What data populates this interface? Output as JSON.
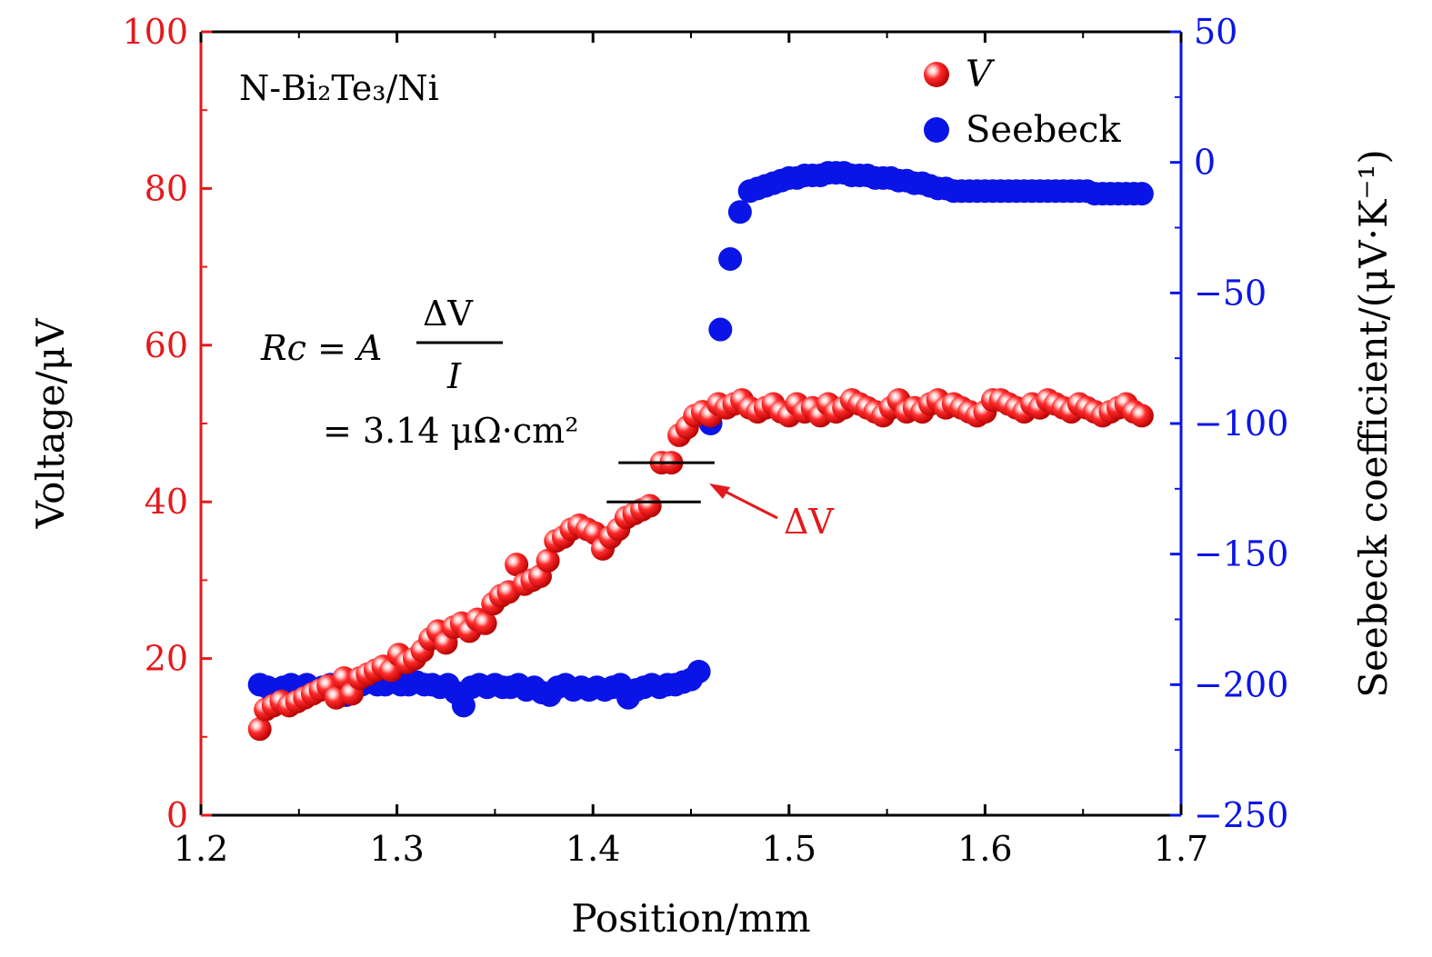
{
  "colors": {
    "voltage": "#e31a1c",
    "seebeck": "#0a14e6",
    "axis": "#000000"
  },
  "chart_data": {
    "type": "scatter",
    "xlabel": "Position/mm",
    "ylabel_left": "Voltage/μV",
    "ylabel_right": "Seebeck coefficient/(μV·K⁻¹)",
    "xlim": [
      1.2,
      1.7
    ],
    "ylim_left": [
      0,
      100
    ],
    "ylim_right": [
      -250,
      50
    ],
    "x_ticks": [
      "1.2",
      "1.3",
      "1.4",
      "1.5",
      "1.6",
      "1.7"
    ],
    "y_left_ticks": [
      "0",
      "20",
      "40",
      "60",
      "80",
      "100"
    ],
    "y_right_ticks": [
      "−250",
      "−200",
      "−150",
      "−100",
      "−50",
      "0",
      "50"
    ],
    "grid": false,
    "legend_position": "top-right",
    "annotation_sample": "N-Bi₂Te₃/Ni",
    "annotation_formula_lhs": "Rc = A",
    "annotation_formula_numerator": "ΔV",
    "annotation_formula_denominator": "I",
    "annotation_formula_value": "= 3.14 μΩ·cm²",
    "annotation_delta": "ΔV",
    "delta_levels": [
      40,
      45
    ],
    "series": [
      {
        "name": "V",
        "axis": "left",
        "points": [
          [
            1.23,
            11.0
          ],
          [
            1.233,
            13.5
          ],
          [
            1.237,
            14.0
          ],
          [
            1.241,
            14.5
          ],
          [
            1.245,
            14.0
          ],
          [
            1.249,
            14.5
          ],
          [
            1.253,
            15.0
          ],
          [
            1.257,
            15.5
          ],
          [
            1.261,
            16.0
          ],
          [
            1.265,
            16.5
          ],
          [
            1.269,
            15.0
          ],
          [
            1.273,
            17.5
          ],
          [
            1.277,
            15.5
          ],
          [
            1.281,
            17.5
          ],
          [
            1.285,
            18.0
          ],
          [
            1.289,
            18.5
          ],
          [
            1.293,
            19.0
          ],
          [
            1.297,
            18.5
          ],
          [
            1.301,
            20.5
          ],
          [
            1.305,
            19.5
          ],
          [
            1.309,
            20.0
          ],
          [
            1.313,
            21.0
          ],
          [
            1.317,
            22.5
          ],
          [
            1.321,
            23.5
          ],
          [
            1.325,
            22.0
          ],
          [
            1.329,
            24.0
          ],
          [
            1.333,
            24.5
          ],
          [
            1.337,
            23.5
          ],
          [
            1.341,
            25.0
          ],
          [
            1.345,
            24.5
          ],
          [
            1.349,
            27.0
          ],
          [
            1.353,
            28.0
          ],
          [
            1.357,
            28.5
          ],
          [
            1.361,
            32.0
          ],
          [
            1.365,
            29.5
          ],
          [
            1.369,
            30.0
          ],
          [
            1.373,
            30.5
          ],
          [
            1.377,
            32.5
          ],
          [
            1.381,
            35.0
          ],
          [
            1.385,
            35.5
          ],
          [
            1.389,
            36.5
          ],
          [
            1.393,
            37.0
          ],
          [
            1.397,
            36.5
          ],
          [
            1.401,
            36.0
          ],
          [
            1.405,
            34.0
          ],
          [
            1.409,
            35.5
          ],
          [
            1.413,
            36.5
          ],
          [
            1.417,
            38.0
          ],
          [
            1.421,
            38.5
          ],
          [
            1.425,
            39.0
          ],
          [
            1.429,
            39.5
          ],
          [
            1.435,
            45.0
          ],
          [
            1.44,
            45.0
          ],
          [
            1.444,
            48.5
          ],
          [
            1.448,
            49.5
          ],
          [
            1.452,
            51.0
          ],
          [
            1.456,
            51.5
          ],
          [
            1.46,
            51.0
          ],
          [
            1.464,
            52.5
          ],
          [
            1.468,
            52.0
          ],
          [
            1.472,
            52.5
          ],
          [
            1.476,
            53.0
          ],
          [
            1.48,
            52.0
          ],
          [
            1.484,
            51.5
          ],
          [
            1.488,
            52.0
          ],
          [
            1.492,
            52.5
          ],
          [
            1.496,
            51.5
          ],
          [
            1.5,
            51.0
          ],
          [
            1.504,
            52.5
          ],
          [
            1.508,
            51.5
          ],
          [
            1.512,
            52.0
          ],
          [
            1.516,
            51.0
          ],
          [
            1.52,
            52.5
          ],
          [
            1.524,
            51.5
          ],
          [
            1.528,
            52.0
          ],
          [
            1.532,
            53.0
          ],
          [
            1.536,
            52.5
          ],
          [
            1.54,
            52.0
          ],
          [
            1.544,
            51.5
          ],
          [
            1.548,
            51.0
          ],
          [
            1.552,
            52.0
          ],
          [
            1.556,
            53.0
          ],
          [
            1.56,
            51.5
          ],
          [
            1.564,
            52.0
          ],
          [
            1.568,
            51.5
          ],
          [
            1.572,
            52.5
          ],
          [
            1.576,
            53.0
          ],
          [
            1.58,
            52.0
          ],
          [
            1.584,
            52.5
          ],
          [
            1.588,
            52.0
          ],
          [
            1.592,
            51.5
          ],
          [
            1.596,
            51.0
          ],
          [
            1.6,
            51.5
          ],
          [
            1.604,
            53.0
          ],
          [
            1.608,
            53.0
          ],
          [
            1.612,
            52.5
          ],
          [
            1.616,
            52.0
          ],
          [
            1.62,
            51.5
          ],
          [
            1.624,
            52.5
          ],
          [
            1.628,
            52.0
          ],
          [
            1.632,
            53.0
          ],
          [
            1.636,
            52.5
          ],
          [
            1.64,
            52.0
          ],
          [
            1.644,
            51.5
          ],
          [
            1.648,
            52.5
          ],
          [
            1.652,
            52.0
          ],
          [
            1.656,
            51.5
          ],
          [
            1.66,
            51.0
          ],
          [
            1.664,
            51.5
          ],
          [
            1.668,
            52.0
          ],
          [
            1.672,
            52.5
          ],
          [
            1.676,
            51.5
          ],
          [
            1.68,
            51.0
          ]
        ]
      },
      {
        "name": "Seebeck",
        "axis": "right",
        "points": [
          [
            1.23,
            -200
          ],
          [
            1.234,
            -201
          ],
          [
            1.238,
            -202
          ],
          [
            1.242,
            -201
          ],
          [
            1.246,
            -200
          ],
          [
            1.25,
            -201
          ],
          [
            1.254,
            -200
          ],
          [
            1.258,
            -202
          ],
          [
            1.262,
            -201
          ],
          [
            1.266,
            -200
          ],
          [
            1.27,
            -201
          ],
          [
            1.274,
            -204
          ],
          [
            1.278,
            -201
          ],
          [
            1.282,
            -200
          ],
          [
            1.286,
            -199
          ],
          [
            1.29,
            -200
          ],
          [
            1.294,
            -200
          ],
          [
            1.298,
            -199
          ],
          [
            1.302,
            -200
          ],
          [
            1.306,
            -200
          ],
          [
            1.31,
            -199
          ],
          [
            1.314,
            -200
          ],
          [
            1.318,
            -200
          ],
          [
            1.322,
            -201
          ],
          [
            1.326,
            -200
          ],
          [
            1.33,
            -203
          ],
          [
            1.334,
            -208
          ],
          [
            1.338,
            -201
          ],
          [
            1.342,
            -200
          ],
          [
            1.346,
            -201
          ],
          [
            1.35,
            -200
          ],
          [
            1.354,
            -201
          ],
          [
            1.358,
            -201
          ],
          [
            1.362,
            -200
          ],
          [
            1.366,
            -202
          ],
          [
            1.37,
            -201
          ],
          [
            1.374,
            -203
          ],
          [
            1.378,
            -204
          ],
          [
            1.382,
            -201
          ],
          [
            1.386,
            -200
          ],
          [
            1.39,
            -202
          ],
          [
            1.394,
            -201
          ],
          [
            1.398,
            -202
          ],
          [
            1.402,
            -201
          ],
          [
            1.406,
            -202
          ],
          [
            1.41,
            -201
          ],
          [
            1.414,
            -200
          ],
          [
            1.418,
            -205
          ],
          [
            1.422,
            -202
          ],
          [
            1.426,
            -201
          ],
          [
            1.43,
            -200
          ],
          [
            1.434,
            -201
          ],
          [
            1.438,
            -200
          ],
          [
            1.442,
            -200
          ],
          [
            1.446,
            -199
          ],
          [
            1.45,
            -198
          ],
          [
            1.454,
            -195
          ],
          [
            1.46,
            -100
          ],
          [
            1.465,
            -64
          ],
          [
            1.47,
            -37
          ],
          [
            1.475,
            -19
          ],
          [
            1.48,
            -11
          ],
          [
            1.484,
            -10
          ],
          [
            1.488,
            -9
          ],
          [
            1.492,
            -8
          ],
          [
            1.496,
            -7
          ],
          [
            1.5,
            -6
          ],
          [
            1.504,
            -6
          ],
          [
            1.508,
            -5
          ],
          [
            1.512,
            -5
          ],
          [
            1.516,
            -5
          ],
          [
            1.52,
            -4
          ],
          [
            1.524,
            -4
          ],
          [
            1.528,
            -4
          ],
          [
            1.532,
            -5
          ],
          [
            1.536,
            -5
          ],
          [
            1.54,
            -5
          ],
          [
            1.544,
            -6
          ],
          [
            1.548,
            -6
          ],
          [
            1.552,
            -6
          ],
          [
            1.556,
            -7
          ],
          [
            1.56,
            -7
          ],
          [
            1.564,
            -8
          ],
          [
            1.568,
            -8
          ],
          [
            1.572,
            -9
          ],
          [
            1.576,
            -10
          ],
          [
            1.58,
            -10
          ],
          [
            1.584,
            -11
          ],
          [
            1.588,
            -11
          ],
          [
            1.592,
            -11
          ],
          [
            1.596,
            -11
          ],
          [
            1.6,
            -11
          ],
          [
            1.604,
            -11
          ],
          [
            1.608,
            -11
          ],
          [
            1.612,
            -11
          ],
          [
            1.616,
            -11
          ],
          [
            1.62,
            -11
          ],
          [
            1.624,
            -11
          ],
          [
            1.628,
            -11
          ],
          [
            1.632,
            -11
          ],
          [
            1.636,
            -11
          ],
          [
            1.64,
            -11
          ],
          [
            1.644,
            -11
          ],
          [
            1.648,
            -11
          ],
          [
            1.652,
            -11
          ],
          [
            1.656,
            -12
          ],
          [
            1.66,
            -12
          ],
          [
            1.664,
            -12
          ],
          [
            1.668,
            -12
          ],
          [
            1.672,
            -12
          ],
          [
            1.676,
            -12
          ],
          [
            1.68,
            -12
          ]
        ]
      }
    ]
  }
}
